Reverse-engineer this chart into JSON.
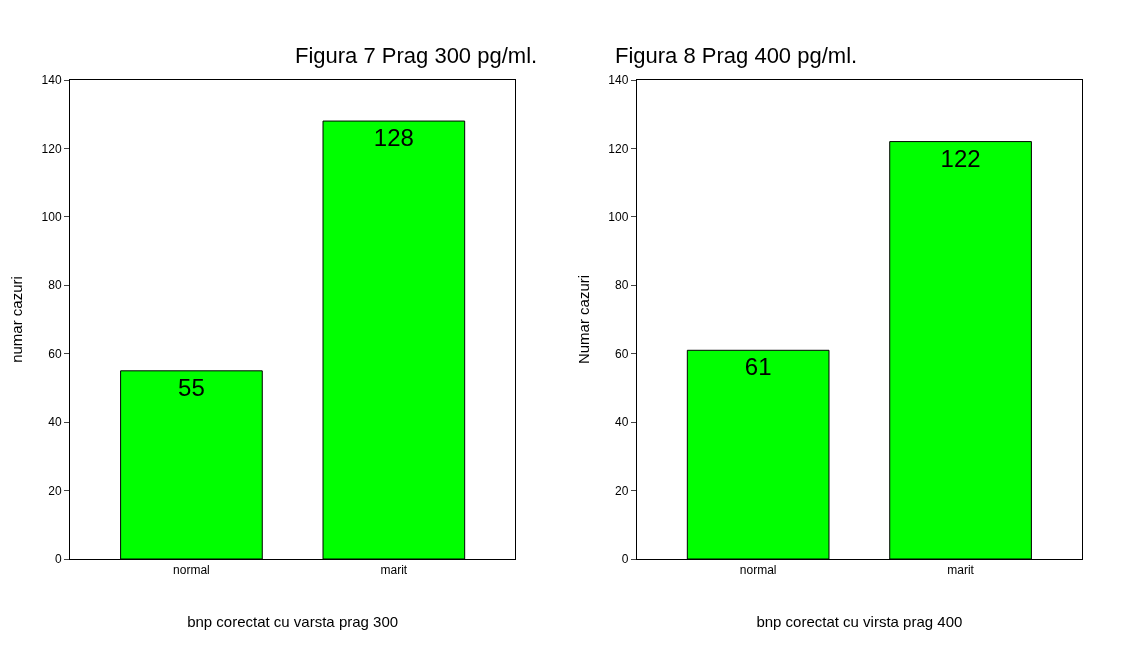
{
  "chart_data": [
    {
      "type": "bar",
      "title": "Figura 7 Prag 300 pg/ml.",
      "xlabel": "bnp corectat cu varsta prag 300",
      "ylabel": "numar cazuri",
      "categories": [
        "normal",
        "marit"
      ],
      "values": [
        55,
        128
      ],
      "color": "#00ff00",
      "ylim": [
        0,
        140
      ],
      "yticks": [
        0,
        20,
        40,
        60,
        80,
        100,
        120,
        140
      ],
      "data_labels": true
    },
    {
      "type": "bar",
      "title": "Figura 8 Prag 400 pg/ml.",
      "xlabel": "bnp corectat cu virsta prag 400",
      "ylabel": "Numar cazuri",
      "categories": [
        "normal",
        "marit"
      ],
      "values": [
        61,
        122
      ],
      "color": "#00ff00",
      "ylim": [
        0,
        140
      ],
      "yticks": [
        0,
        20,
        40,
        60,
        80,
        100,
        120,
        140
      ],
      "data_labels": true
    }
  ]
}
